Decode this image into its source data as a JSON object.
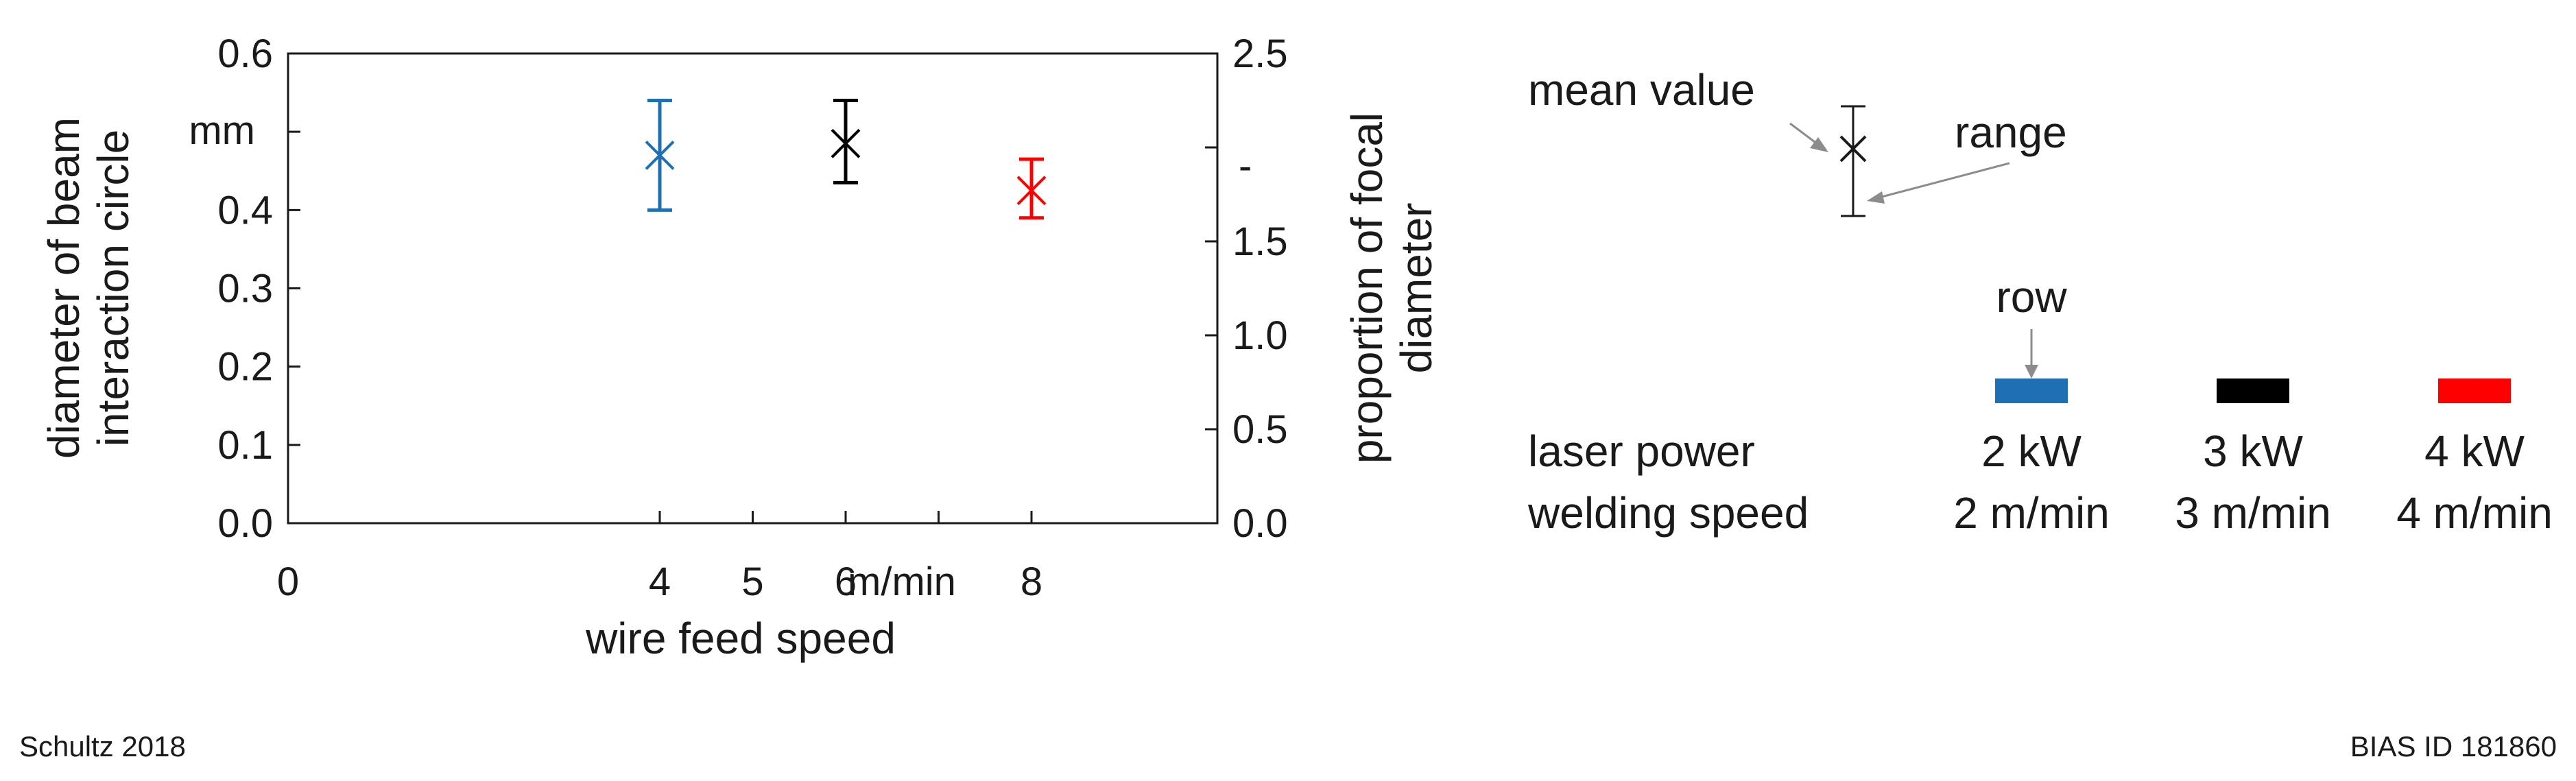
{
  "chart_data": {
    "type": "scatter",
    "xlabel": "wire feed speed",
    "x_unit_label": "m/min",
    "xlim": [
      0,
      10
    ],
    "x_ticks": [
      "0",
      "4",
      "5",
      "6",
      "8"
    ],
    "ylabel_lines": [
      "diameter of beam",
      "interaction circle"
    ],
    "y_unit_label": "mm",
    "ylim": [
      0.0,
      0.6
    ],
    "y_ticks": [
      "0.0",
      "0.1",
      "0.2",
      "0.3",
      "0.4",
      "0.6"
    ],
    "y2label_lines": [
      "proportion of focal",
      "diameter"
    ],
    "y2_unit_label": "-",
    "y2lim": [
      0.0,
      2.5
    ],
    "y2_ticks": [
      "0.0",
      "0.5",
      "1.0",
      "1.5",
      "2.5"
    ],
    "grid": false,
    "points": [
      {
        "x": 4,
        "mean": 0.47,
        "min": 0.4,
        "max": 0.54,
        "color": "#1f6fb4"
      },
      {
        "x": 6,
        "mean": 0.485,
        "min": 0.435,
        "max": 0.54,
        "color": "#000000"
      },
      {
        "x": 8,
        "mean": 0.425,
        "min": 0.39,
        "max": 0.465,
        "color": "#ff0000"
      }
    ]
  },
  "legend": {
    "mean_label": "mean value",
    "range_label": "range",
    "row_label": "row",
    "laser_power_label": "laser power",
    "welding_speed_label": "welding speed",
    "rows": [
      {
        "power": "2 kW",
        "speed": "2 m/min",
        "color": "#1f6fb4"
      },
      {
        "power": "3 kW",
        "speed": "3 m/min",
        "color": "#000000"
      },
      {
        "power": "4 kW",
        "speed": "4 m/min",
        "color": "#ff0000"
      }
    ]
  },
  "footer": {
    "left": "Schultz 2018",
    "right": "BIAS ID 181860"
  }
}
